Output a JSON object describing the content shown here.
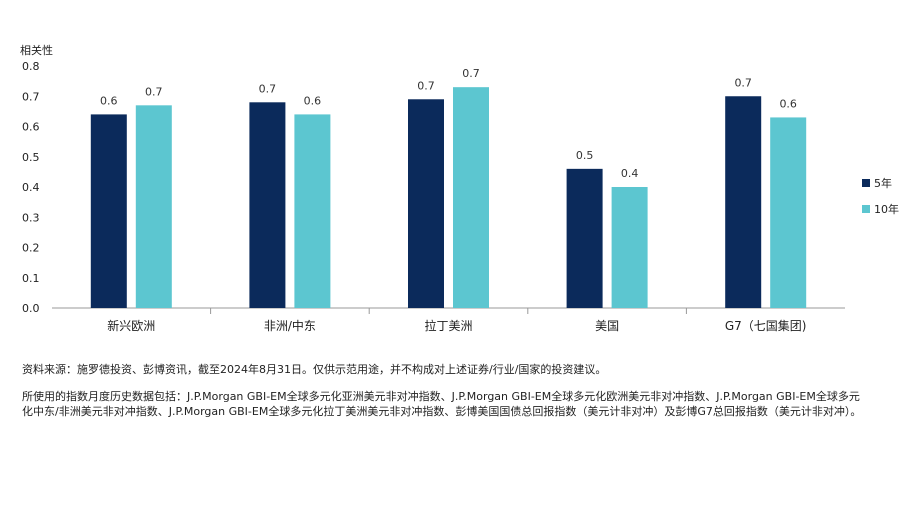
{
  "chart_data": {
    "type": "bar",
    "ylabel": "相关性",
    "ylim": [
      0,
      0.8
    ],
    "yticks": [
      "0.0",
      "0.1",
      "0.2",
      "0.3",
      "0.4",
      "0.5",
      "0.6",
      "0.7",
      "0.8"
    ],
    "categories": [
      "新兴欧洲",
      "非洲/中东",
      "拉丁美洲",
      "美国",
      "G7（七国集团)"
    ],
    "series": [
      {
        "name": "5年",
        "color": "#0b2a5b",
        "values": [
          0.64,
          0.68,
          0.69,
          0.46,
          0.7
        ],
        "labels": [
          "0.6",
          "0.7",
          "0.7",
          "0.5",
          "0.7"
        ]
      },
      {
        "name": "10年",
        "color": "#5cc6d0",
        "values": [
          0.67,
          0.64,
          0.73,
          0.4,
          0.63
        ],
        "labels": [
          "0.7",
          "0.6",
          "0.7",
          "0.4",
          "0.6"
        ]
      }
    ],
    "legend_position": "right"
  },
  "notes": {
    "source": "资料来源：施罗德投资、彭博资讯，截至2024年8月31日。仅供示范用途，并不构成对上述证券/行业/国家的投资建议。",
    "indices": "所使用的指数月度历史数据包括：J.P.Morgan GBI-EM全球多元化亚洲美元非对冲指数、J.P.Morgan GBI-EM全球多元化欧洲美元非对冲指数、J.P.Morgan GBI-EM全球多元化中东/非洲美元非对冲指数、J.P.Morgan GBI-EM全球多元化拉丁美洲美元非对冲指数、彭博美国国债总回报指数（美元计非对冲）及彭博G7总回报指数（美元计非对冲）。"
  }
}
